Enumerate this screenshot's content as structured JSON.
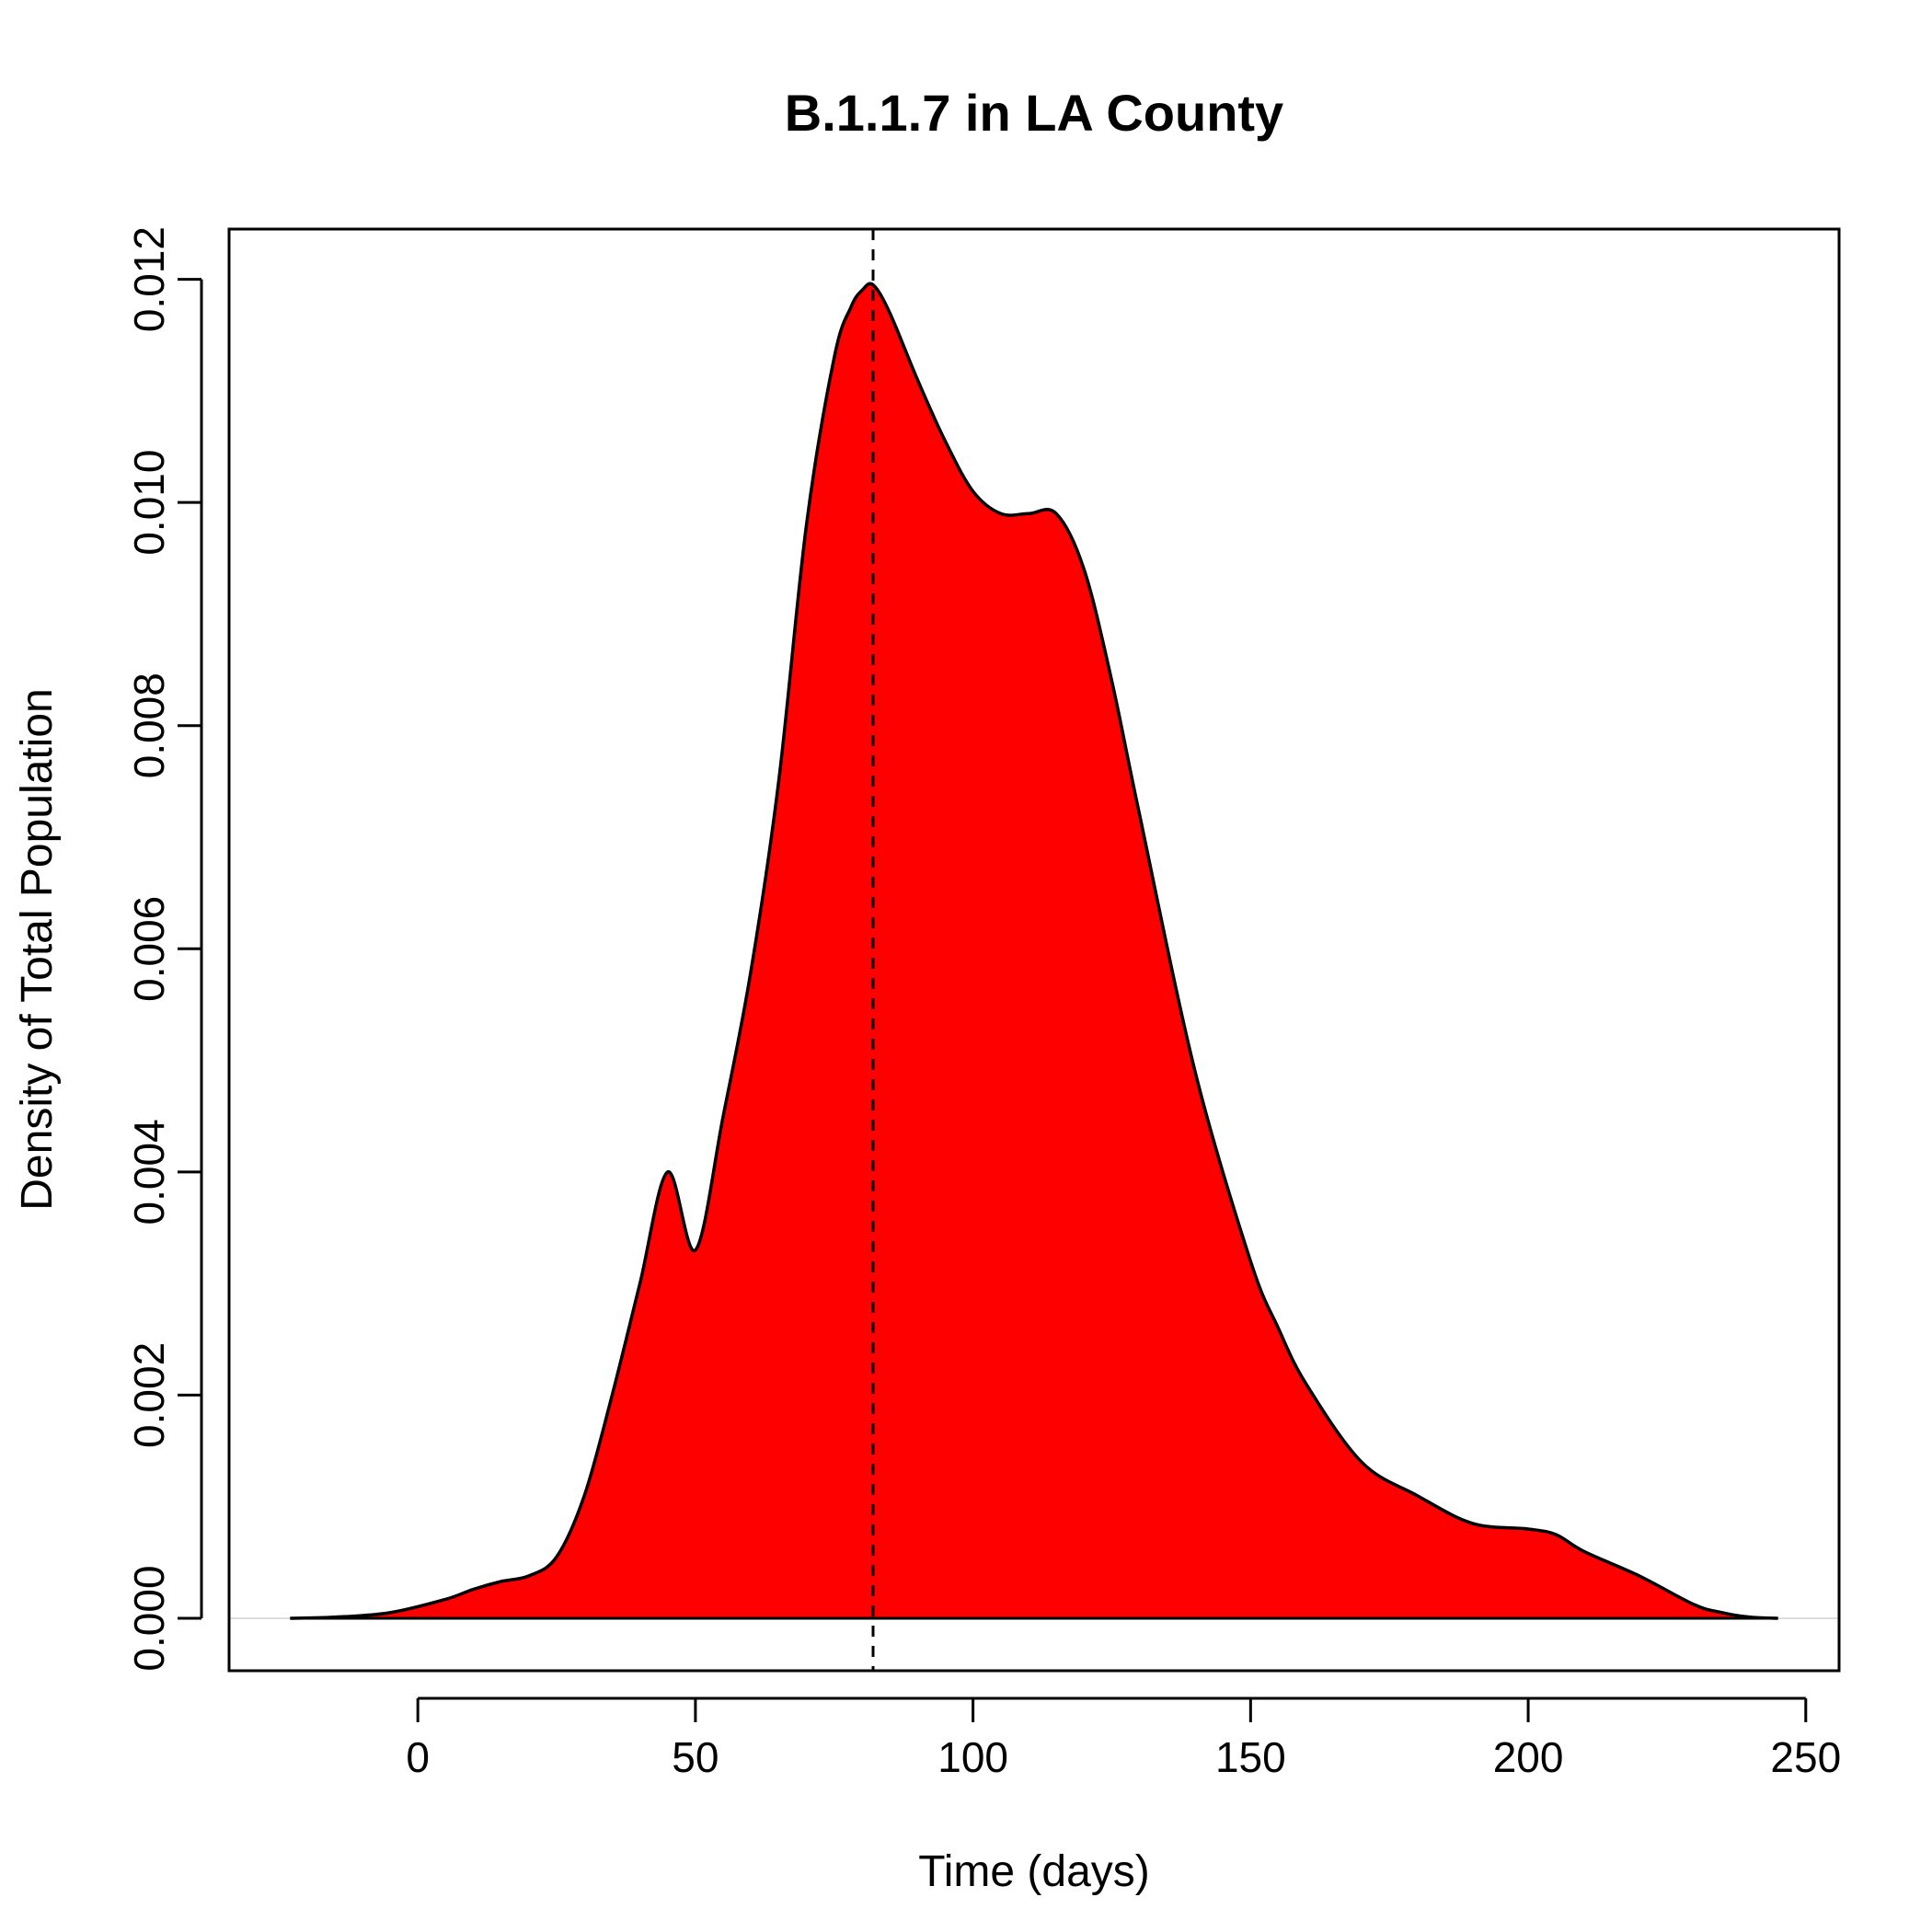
{
  "chart_data": {
    "type": "area",
    "title": "B.1.1.7 in LA County",
    "xlabel": "Time (days)",
    "ylabel": "Density of Total Population",
    "xlim": [
      -34,
      256
    ],
    "ylim": [
      -0.00047,
      0.01245
    ],
    "x_ticks": [
      0,
      50,
      100,
      150,
      200,
      250
    ],
    "x_tick_labels": [
      "0",
      "50",
      "100",
      "150",
      "200",
      "250"
    ],
    "y_ticks": [
      0.0,
      0.002,
      0.004,
      0.006,
      0.008,
      0.01,
      0.012
    ],
    "y_tick_labels": [
      "0.000",
      "0.002",
      "0.004",
      "0.006",
      "0.008",
      "0.010",
      "0.012"
    ],
    "grid": false,
    "fill_color": "#ff0000",
    "line_color": "#000000",
    "vline": {
      "x": 82,
      "style": "dashed"
    },
    "series": [
      {
        "x": [
          -23,
          -15,
          -5,
          5,
          10,
          15,
          20,
          25,
          30,
          35,
          40,
          45,
          50,
          55,
          60,
          65,
          70,
          75,
          78,
          80,
          82,
          85,
          90,
          95,
          100,
          105,
          110,
          115,
          120,
          125,
          130,
          140,
          150,
          155,
          160,
          170,
          180,
          190,
          200,
          205,
          210,
          220,
          230,
          235,
          240,
          245
        ],
        "y": [
          0.0,
          1e-05,
          5e-05,
          0.00017,
          0.00026,
          0.00033,
          0.00038,
          0.00055,
          0.0011,
          0.002,
          0.003,
          0.004,
          0.0033,
          0.0045,
          0.0058,
          0.0075,
          0.0098,
          0.0113,
          0.01175,
          0.0119,
          0.01195,
          0.0117,
          0.0111,
          0.01055,
          0.0101,
          0.0099,
          0.0099,
          0.0099,
          0.0094,
          0.0084,
          0.0072,
          0.0049,
          0.0032,
          0.0026,
          0.0021,
          0.0014,
          0.0011,
          0.00085,
          0.0008,
          0.00075,
          0.0006,
          0.00038,
          0.00012,
          5e-05,
          1e-05,
          0.0
        ]
      }
    ]
  }
}
